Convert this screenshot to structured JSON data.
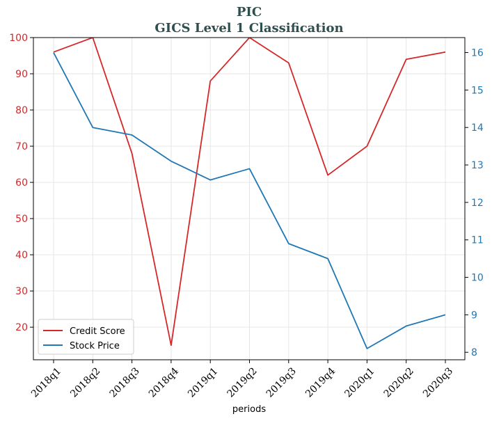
{
  "chart_data": {
    "type": "line",
    "title": "PIC",
    "subtitle": "GICS Level 1 Classification",
    "xlabel": "periods",
    "categories": [
      "2018q1",
      "2018q2",
      "2018q3",
      "2018q4",
      "2019q1",
      "2019q2",
      "2019q3",
      "2019q4",
      "2020q1",
      "2020q2",
      "2020q3"
    ],
    "y_left": {
      "ylim": [
        11,
        100
      ],
      "ticks": [
        20,
        30,
        40,
        50,
        60,
        70,
        80,
        90,
        100
      ],
      "color": "#d62728"
    },
    "y_right": {
      "ylim": [
        7.8,
        16.4
      ],
      "ticks": [
        8,
        9,
        10,
        11,
        12,
        13,
        14,
        15,
        16
      ],
      "color": "#1f77b4"
    },
    "grid": true,
    "legend_position": "lower-left",
    "series": [
      {
        "name": "Credit Score",
        "axis": "left",
        "color": "#d62728",
        "values": [
          96,
          100,
          68,
          15,
          88,
          100,
          93,
          62,
          70,
          94,
          96
        ]
      },
      {
        "name": "Stock Price",
        "axis": "right",
        "color": "#1f77b4",
        "values": [
          16.0,
          14.0,
          13.8,
          13.1,
          12.6,
          12.9,
          10.9,
          10.5,
          8.1,
          8.7,
          9.0
        ]
      }
    ]
  }
}
